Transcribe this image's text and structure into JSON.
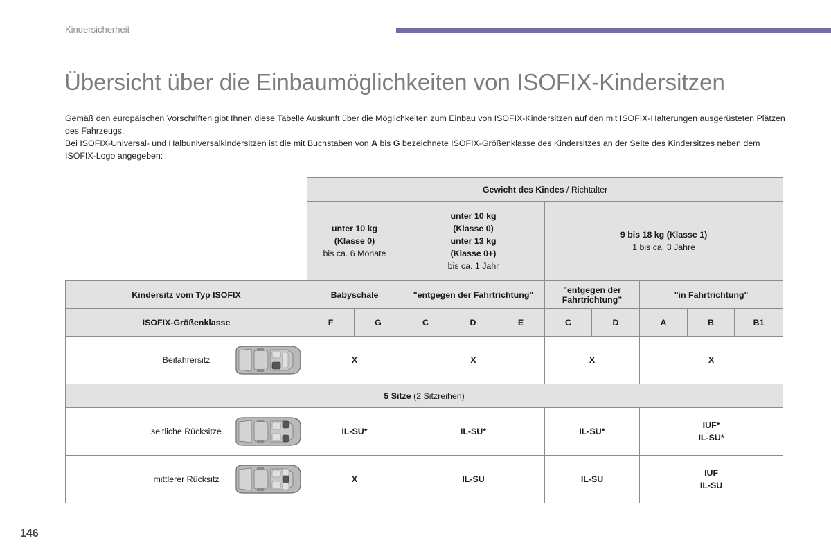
{
  "header": {
    "section": "Kindersicherheit",
    "title": "Übersicht über die Einbaumöglichkeiten von ISOFIX-Kindersitzen",
    "accent_color": "#7a6aa2"
  },
  "intro": {
    "paragraph1": "Gemäß den europäischen Vorschriften gibt Ihnen diese Tabelle Auskunft über die Möglichkeiten zum Einbau von ISOFIX-Kindersitzen auf den mit ISOFIX-Halterungen ausgerüsteten Plätzen des Fahrzeugs.",
    "p2_before_a": "Bei ISOFIX-Universal- und Halbuniversalkindersitzen ist die mit Buchstaben von ",
    "p2_a": "A",
    "p2_between": " bis ",
    "p2_g": "G",
    "p2_after": " bezeichnete ISOFIX-Größenklasse des Kindersitzes an der Seite des Kindersitzes neben dem ISOFIX-Logo angegeben:"
  },
  "table": {
    "weight_header_bold": "Gewicht des Kindes",
    "weight_header_rest": " / Richtalter",
    "groups": [
      {
        "lines": [
          "unter 10 kg",
          "(Klasse 0)"
        ],
        "age": "bis ca. 6 Monate"
      },
      {
        "lines": [
          "unter 10 kg",
          "(Klasse 0)",
          "unter 13 kg",
          "(Klasse 0+)"
        ],
        "age": "bis ca. 1 Jahr"
      },
      {
        "lines": [
          "9 bis 18 kg (Klasse 1)"
        ],
        "age": "1 bis ca. 3 Jahre"
      }
    ],
    "type_row": {
      "label": "Kindersitz vom Typ ISOFIX",
      "types": [
        "Babyschale",
        "\"entgegen der Fahrtrichtung\"",
        "\"entgegen der Fahrtrichtung\"",
        "\"in Fahrtrichtung\""
      ]
    },
    "size_row": {
      "label": "ISOFIX-Größenklasse",
      "classes": [
        "F",
        "G",
        "C",
        "D",
        "E",
        "C",
        "D",
        "A",
        "B",
        "B1"
      ]
    },
    "rows": {
      "front": {
        "label": "Beifahrersitz",
        "values": [
          "X",
          "X",
          "X",
          "X"
        ],
        "icon": "car-front-seat-icon"
      },
      "five_seats": {
        "bold": "5 Sitze",
        "rest": " (2 Sitzreihen)"
      },
      "side_rear": {
        "label": "seitliche Rücksitze",
        "values": [
          "IL-SU*",
          "IL-SU*",
          "IL-SU*"
        ],
        "last_lines": [
          "IUF*",
          "IL-SU*"
        ],
        "icon": "car-side-rear-seats-icon"
      },
      "middle_rear": {
        "label": "mittlerer Rücksitz",
        "values": [
          "X",
          "IL-SU",
          "IL-SU"
        ],
        "last_lines": [
          "IUF",
          "IL-SU"
        ],
        "icon": "car-middle-rear-seat-icon"
      }
    },
    "shade_color": "#e2e2e2",
    "border_color": "#8c8c8c"
  },
  "footer": {
    "page_number": "146"
  }
}
